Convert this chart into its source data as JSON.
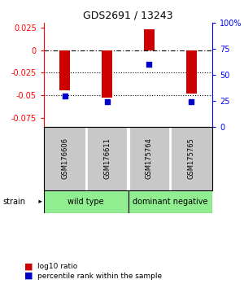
{
  "title": "GDS2691 / 13243",
  "samples": [
    "GSM176606",
    "GSM176611",
    "GSM175764",
    "GSM175765"
  ],
  "log10_ratios": [
    -0.045,
    -0.053,
    0.023,
    -0.048
  ],
  "percentile_ranks": [
    30,
    24,
    60,
    24
  ],
  "ylim_left": [
    -0.085,
    0.03
  ],
  "ylim_right": [
    0,
    100
  ],
  "y_left_ticks": [
    0.025,
    0,
    -0.025,
    -0.05,
    -0.075
  ],
  "y_right_ticks": [
    100,
    75,
    50,
    25,
    0
  ],
  "bar_color": "#CC0000",
  "dot_color": "#0000CC",
  "bar_width": 0.25,
  "background_color": "#ffffff",
  "sample_bg_color": "#C8C8C8",
  "group1_label": "wild type",
  "group2_label": "dominant negative",
  "group_color": "#90EE90",
  "legend_red_label": "log10 ratio",
  "legend_blue_label": "percentile rank within the sample"
}
